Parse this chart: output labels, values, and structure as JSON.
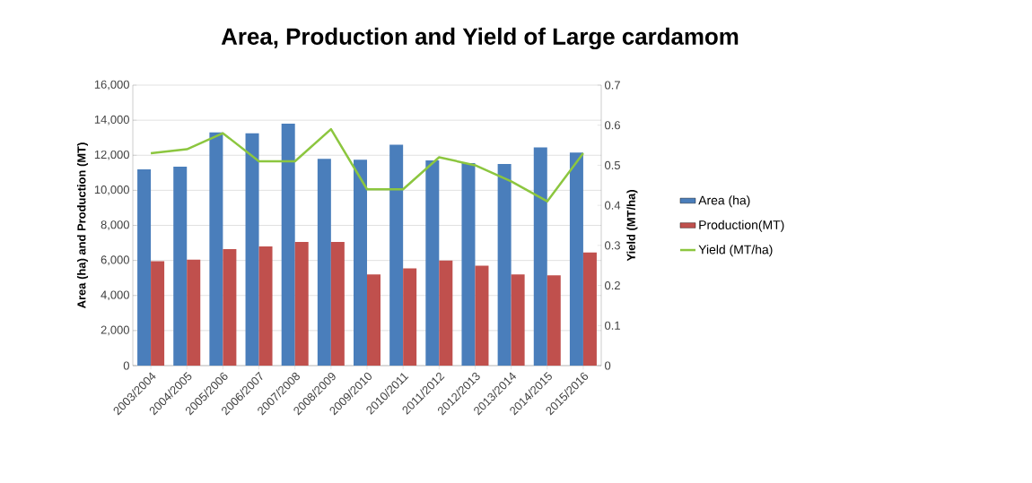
{
  "chart_data": {
    "type": "bar",
    "title": "Area, Production and Yield of Large cardamom",
    "ylabel": "Area (ha) and Production (MT)",
    "y2label": "Yield (MT/ha)",
    "categories": [
      "2003/2004",
      "2004/2005",
      "2005/2006",
      "2006/2007",
      "2007/2008",
      "2008/2009",
      "2009/2010",
      "2010/2011",
      "2011/2012",
      "2012/2013",
      "2013/2014",
      "2014/2015",
      "2015/2016"
    ],
    "series": [
      {
        "name": "Area (ha)",
        "color": "#4a7ebb",
        "values": [
          11200,
          11350,
          13300,
          13250,
          13800,
          11800,
          11750,
          12600,
          11700,
          11550,
          11500,
          12450,
          12150
        ]
      },
      {
        "name": "Production(MT)",
        "color": "#c0504d",
        "values": [
          5950,
          6050,
          6650,
          6800,
          7050,
          7050,
          5200,
          5550,
          6000,
          5700,
          5200,
          5150,
          6450
        ]
      },
      {
        "name": "Yield (MT/ha)",
        "type": "line",
        "axis": "y2",
        "color": "#8cc63f",
        "values": [
          0.53,
          0.54,
          0.58,
          0.51,
          0.51,
          0.59,
          0.44,
          0.44,
          0.52,
          0.5,
          0.46,
          0.41,
          0.53
        ]
      }
    ],
    "ylim": [
      0,
      16000
    ],
    "yticks": [
      {
        "value": 0,
        "label": "0"
      },
      {
        "value": 2000,
        "label": "2,000"
      },
      {
        "value": 4000,
        "label": "4,000"
      },
      {
        "value": 6000,
        "label": "6,000"
      },
      {
        "value": 8000,
        "label": "8,000"
      },
      {
        "value": 10000,
        "label": "10,000"
      },
      {
        "value": 12000,
        "label": "12,000"
      },
      {
        "value": 14000,
        "label": "14,000"
      },
      {
        "value": 16000,
        "label": "16,000"
      }
    ],
    "y2lim": [
      0,
      0.7
    ],
    "y2ticks": [
      0,
      0.1,
      0.2,
      0.3,
      0.4,
      0.5,
      0.6,
      0.7
    ],
    "grid": "y",
    "legend": "right",
    "marker": "none"
  }
}
